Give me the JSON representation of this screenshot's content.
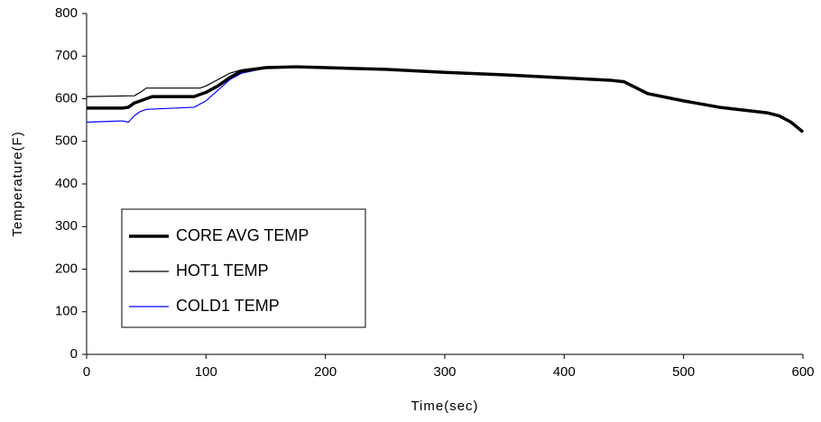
{
  "chart_data": {
    "type": "line",
    "x_label": "Time(sec)",
    "y_label": "Temperature(F)",
    "xlim": [
      0,
      600
    ],
    "ylim": [
      0,
      800
    ],
    "xticks": [
      0,
      100,
      200,
      300,
      400,
      500,
      600
    ],
    "yticks": [
      0,
      100,
      200,
      300,
      400,
      500,
      600,
      700,
      800
    ],
    "grid": false,
    "legend_position": "lower left",
    "series": [
      {
        "name": "CORE AVG TEMP",
        "color": "#000000",
        "line_width": 3.5,
        "x": [
          0,
          30,
          35,
          40,
          50,
          55,
          90,
          100,
          110,
          120,
          130,
          150,
          175,
          200,
          250,
          300,
          350,
          400,
          440,
          450,
          470,
          500,
          530,
          570,
          580,
          590,
          600
        ],
        "values": [
          578,
          578,
          580,
          590,
          600,
          605,
          605,
          615,
          630,
          650,
          665,
          673,
          675,
          673,
          669,
          662,
          656,
          649,
          643,
          640,
          612,
          595,
          580,
          567,
          560,
          545,
          522
        ]
      },
      {
        "name": "HOT1 TEMP",
        "color": "#000000",
        "line_width": 1.2,
        "x": [
          0,
          40,
          45,
          50,
          95,
          100,
          110,
          120,
          130,
          150,
          175,
          200,
          250,
          300,
          350,
          400,
          440,
          450,
          470,
          500,
          530,
          570,
          580,
          590,
          600
        ],
        "values": [
          605,
          607,
          615,
          625,
          625,
          630,
          645,
          660,
          668,
          675,
          676,
          673,
          669,
          662,
          656,
          649,
          643,
          640,
          612,
          595,
          580,
          567,
          560,
          545,
          522
        ]
      },
      {
        "name": "COLD1 TEMP",
        "color": "#0000ff",
        "line_width": 1.2,
        "x": [
          0,
          30,
          35,
          40,
          45,
          50,
          90,
          100,
          110,
          120,
          130,
          150,
          175,
          200,
          250,
          300,
          350,
          400,
          440,
          450,
          470,
          500,
          530,
          570,
          580,
          590,
          600
        ],
        "values": [
          545,
          548,
          545,
          560,
          570,
          575,
          580,
          595,
          620,
          645,
          660,
          672,
          675,
          673,
          669,
          662,
          656,
          649,
          643,
          640,
          612,
          595,
          580,
          567,
          560,
          545,
          522
        ]
      }
    ]
  }
}
